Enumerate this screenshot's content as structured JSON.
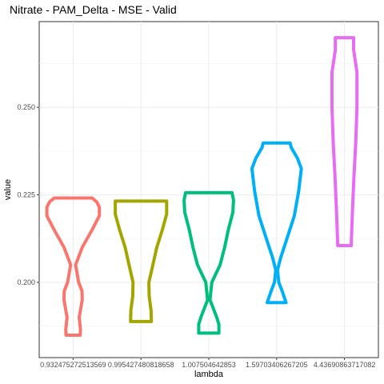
{
  "chart_data": {
    "type": "violin",
    "title": "Nitrate - PAM_Delta - MSE - Valid",
    "xlabel": "lambda",
    "ylabel": "value",
    "ylim": [
      0.1785,
      0.2745
    ],
    "y_ticks": [
      0.2,
      0.225,
      0.25
    ],
    "y_tick_labels": [
      "0.200",
      "0.225",
      "0.250"
    ],
    "grid": true,
    "legend": "none",
    "categories": [
      "0.932475272513569",
      "0.995427480818658",
      "1.007504642853",
      "1.59703406267205",
      "4.43690863717082"
    ],
    "series": [
      {
        "color": "#F8766D",
        "min": 0.1849,
        "max": 0.2241,
        "profile": [
          [
            0.1849,
            0.23
          ],
          [
            0.1865,
            0.24
          ],
          [
            0.19,
            0.2
          ],
          [
            0.195,
            0.3
          ],
          [
            0.1975,
            0.29
          ],
          [
            0.2,
            0.18
          ],
          [
            0.205,
            0.08
          ],
          [
            0.21,
            0.3
          ],
          [
            0.215,
            0.62
          ],
          [
            0.219,
            0.86
          ],
          [
            0.2215,
            0.86
          ],
          [
            0.223,
            0.77
          ],
          [
            0.2241,
            0.62
          ]
        ]
      },
      {
        "color": "#A3A500",
        "min": 0.1888,
        "max": 0.2232,
        "profile": [
          [
            0.1888,
            0.34
          ],
          [
            0.192,
            0.33
          ],
          [
            0.196,
            0.27
          ],
          [
            0.2,
            0.26
          ],
          [
            0.205,
            0.39
          ],
          [
            0.21,
            0.52
          ],
          [
            0.215,
            0.7
          ],
          [
            0.2195,
            0.84
          ],
          [
            0.2215,
            0.84
          ],
          [
            0.2232,
            0.84
          ]
        ]
      },
      {
        "color": "#00BF7D",
        "min": 0.1855,
        "max": 0.2256,
        "profile": [
          [
            0.1855,
            0.33
          ],
          [
            0.188,
            0.33
          ],
          [
            0.19,
            0.26
          ],
          [
            0.195,
            0.04
          ],
          [
            0.2,
            0.1
          ],
          [
            0.205,
            0.37
          ],
          [
            0.21,
            0.52
          ],
          [
            0.215,
            0.64
          ],
          [
            0.22,
            0.79
          ],
          [
            0.2235,
            0.81
          ],
          [
            0.2256,
            0.76
          ]
        ]
      },
      {
        "color": "#00B0F6",
        "min": 0.1942,
        "max": 0.2398,
        "profile": [
          [
            0.1942,
            0.31
          ],
          [
            0.1975,
            0.18
          ],
          [
            0.2,
            0.07
          ],
          [
            0.2035,
            0.03
          ],
          [
            0.207,
            0.13
          ],
          [
            0.212,
            0.32
          ],
          [
            0.219,
            0.58
          ],
          [
            0.226,
            0.72
          ],
          [
            0.2325,
            0.81
          ],
          [
            0.2355,
            0.68
          ],
          [
            0.2385,
            0.48
          ],
          [
            0.2398,
            0.44
          ]
        ]
      },
      {
        "color": "#E76BF3",
        "min": 0.2105,
        "max": 0.2699,
        "profile": [
          [
            0.2105,
            0.22
          ],
          [
            0.22,
            0.26
          ],
          [
            0.23,
            0.31
          ],
          [
            0.24,
            0.37
          ],
          [
            0.25,
            0.41
          ],
          [
            0.26,
            0.41
          ],
          [
            0.2665,
            0.3
          ],
          [
            0.2699,
            0.3
          ]
        ]
      }
    ]
  }
}
